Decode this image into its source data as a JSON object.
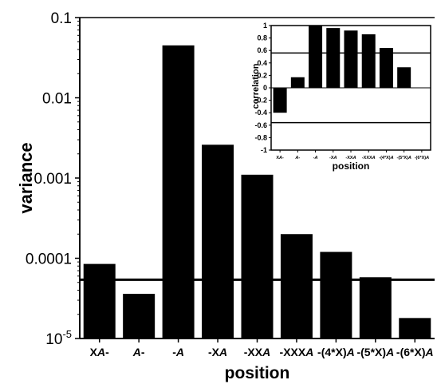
{
  "chart_data": [
    {
      "type": "bar",
      "scale": "log",
      "ylabel": "variance",
      "xlabel": "position",
      "ylim": [
        1e-05,
        0.1
      ],
      "y_ticks": [
        {
          "value": 0.1,
          "label": "0.1"
        },
        {
          "value": 0.01,
          "label": "0.01"
        },
        {
          "value": 0.001,
          "label": "0.001"
        },
        {
          "value": 0.0001,
          "label": "0.0001"
        },
        {
          "value": 1e-05,
          "label": "10-5"
        }
      ],
      "categories": [
        "XA-",
        "A-",
        "-A",
        "-XA",
        "-XXA",
        "-XXXA",
        "-(4*X)A",
        "-(5*X)A",
        "-(6*X)A"
      ],
      "values": [
        8.5e-05,
        3.6e-05,
        0.045,
        0.0026,
        0.0011,
        0.0002,
        0.00012,
        5.8e-05,
        1.8e-05
      ],
      "reference_line": 5.4e-05,
      "grid": false
    },
    {
      "type": "bar",
      "ylabel": "correlation",
      "xlabel": "position",
      "ylim": [
        -1,
        1
      ],
      "y_ticks": [
        "-1",
        "-0.8",
        "-0.6",
        "-0.4",
        "-0.2",
        "0",
        "0.2",
        "0.4",
        "0.6",
        "0.8",
        "1"
      ],
      "categories": [
        "XA-",
        "A-",
        "-A",
        "-XA",
        "-XXA",
        "-XXXA",
        "-(4*X)A",
        "-(5*X)A",
        "-(6*X)A"
      ],
      "values": [
        -0.4,
        0.17,
        1.0,
        0.96,
        0.92,
        0.86,
        0.64,
        0.33,
        0.0
      ],
      "reference_lines": [
        0.56,
        -0.56
      ],
      "grid": false
    }
  ]
}
